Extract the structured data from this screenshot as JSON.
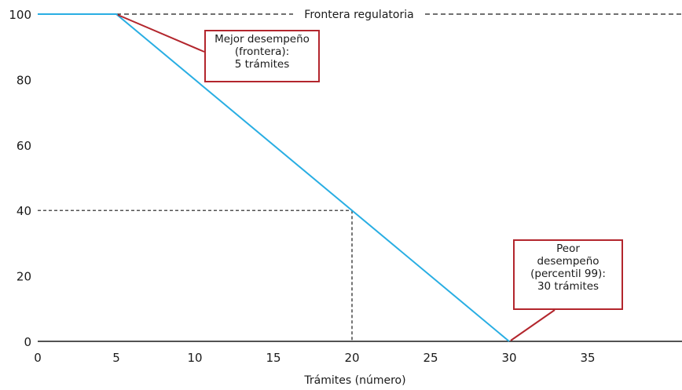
{
  "chart_data": {
    "type": "line",
    "title": "",
    "xlabel": "Trámites (número)",
    "ylabel": "",
    "xlim": [
      0,
      41
    ],
    "ylim": [
      0,
      100
    ],
    "x_ticks": [
      0,
      5,
      10,
      15,
      20,
      25,
      30,
      35
    ],
    "y_ticks": [
      0,
      20,
      40,
      60,
      80,
      100
    ],
    "series": [
      {
        "x": [
          0,
          5,
          30
        ],
        "y": [
          100,
          100,
          0
        ],
        "color": "#29aee3"
      }
    ],
    "reference_lines": [
      {
        "type": "horizontal",
        "y": 100,
        "label": "Frontera regulatoria",
        "style": "dashed"
      },
      {
        "type": "guide",
        "x": 20,
        "y": 40,
        "style": "dashed"
      }
    ],
    "annotations": [
      {
        "id": "best",
        "point": [
          5,
          100
        ],
        "lines": [
          "Mejor desempeño",
          "(frontera):",
          "5 trámites"
        ]
      },
      {
        "id": "worst",
        "point": [
          30,
          0
        ],
        "lines": [
          "Peor",
          "desempeño",
          "(percentil 99):",
          "30 trámites"
        ]
      }
    ],
    "colors": {
      "line": "#29aee3",
      "callout_border": "#b3262d",
      "axis": "#1a1a1a"
    },
    "grid": false
  }
}
